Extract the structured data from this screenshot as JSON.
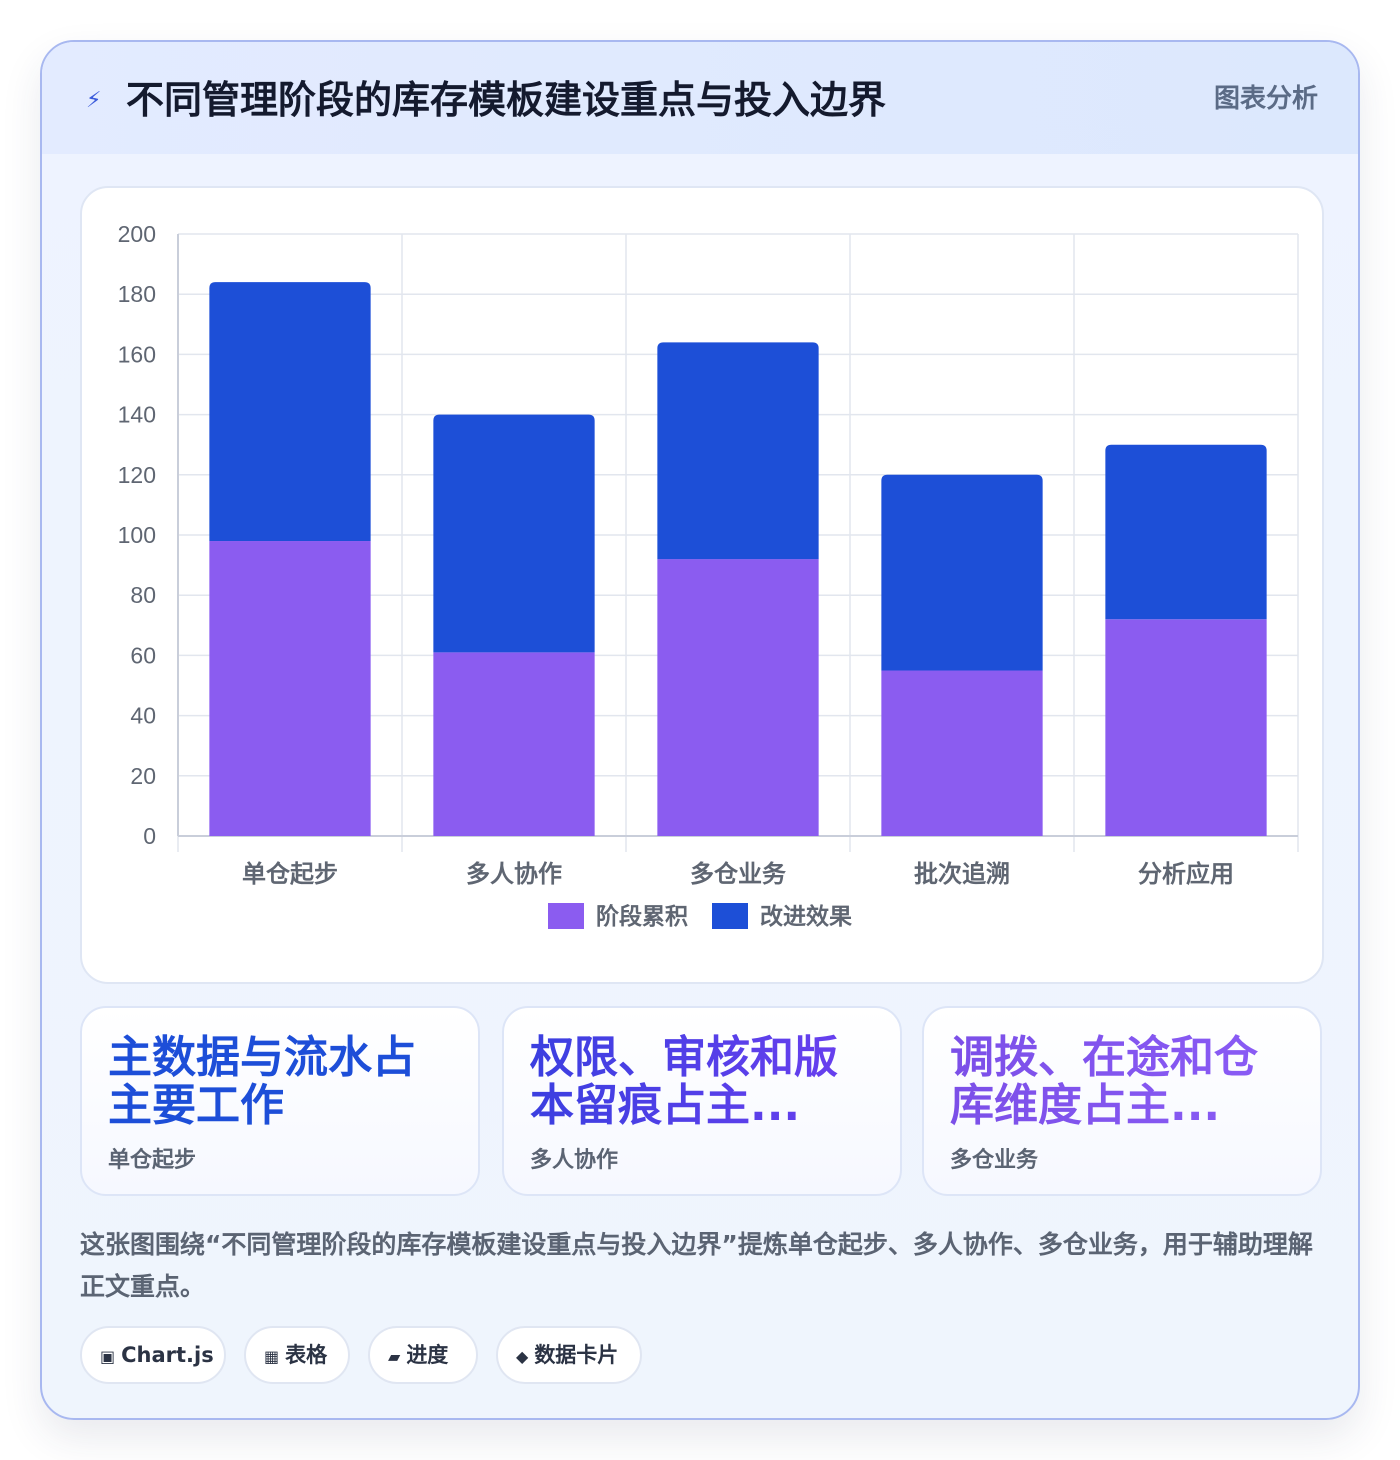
{
  "header": {
    "icon": "lightning-icon",
    "title": "不同管理阶段的库存模板建设重点与投入边界",
    "tag": "图表分析"
  },
  "chart_data": {
    "type": "bar",
    "stacked": true,
    "categories": [
      "单仓起步",
      "多人协作",
      "多仓业务",
      "批次追溯",
      "分析应用"
    ],
    "series": [
      {
        "name": "阶段累积",
        "color": "#8b5cf0",
        "values": [
          98,
          61,
          92,
          55,
          72
        ]
      },
      {
        "name": "改进效果",
        "color": "#1d4fd7",
        "values": [
          86,
          79,
          72,
          65,
          58
        ]
      }
    ],
    "ylim": [
      0,
      200
    ],
    "yticks": [
      0,
      20,
      40,
      60,
      80,
      100,
      120,
      140,
      160,
      180,
      200
    ],
    "grid": true,
    "legend": "bottom"
  },
  "kpis": [
    {
      "value": "主数据与流水占主要工作",
      "label": "单仓起步",
      "gradient": [
        "#1d4ed8",
        "#1d4ed8"
      ]
    },
    {
      "value": "权限、审核和版本留痕占主...",
      "label": "多人协作",
      "gradient": [
        "#3b3fe0",
        "#6d3ff0"
      ]
    },
    {
      "value": "调拨、在途和仓库维度占主...",
      "label": "多仓业务",
      "gradient": [
        "#7b4fe8",
        "#8b5cf6"
      ]
    }
  ],
  "description": "这张图围绕“不同管理阶段的库存模板建设重点与投入边界”提炼单仓起步、多人协作、多仓业务，用于辅助理解正文重点。",
  "chips": [
    {
      "icon": "▣",
      "label": "Chart.js"
    },
    {
      "icon": "▦",
      "label": "表格"
    },
    {
      "icon": "▰",
      "label": "进度"
    },
    {
      "icon": "◆",
      "label": "数据卡片"
    }
  ]
}
